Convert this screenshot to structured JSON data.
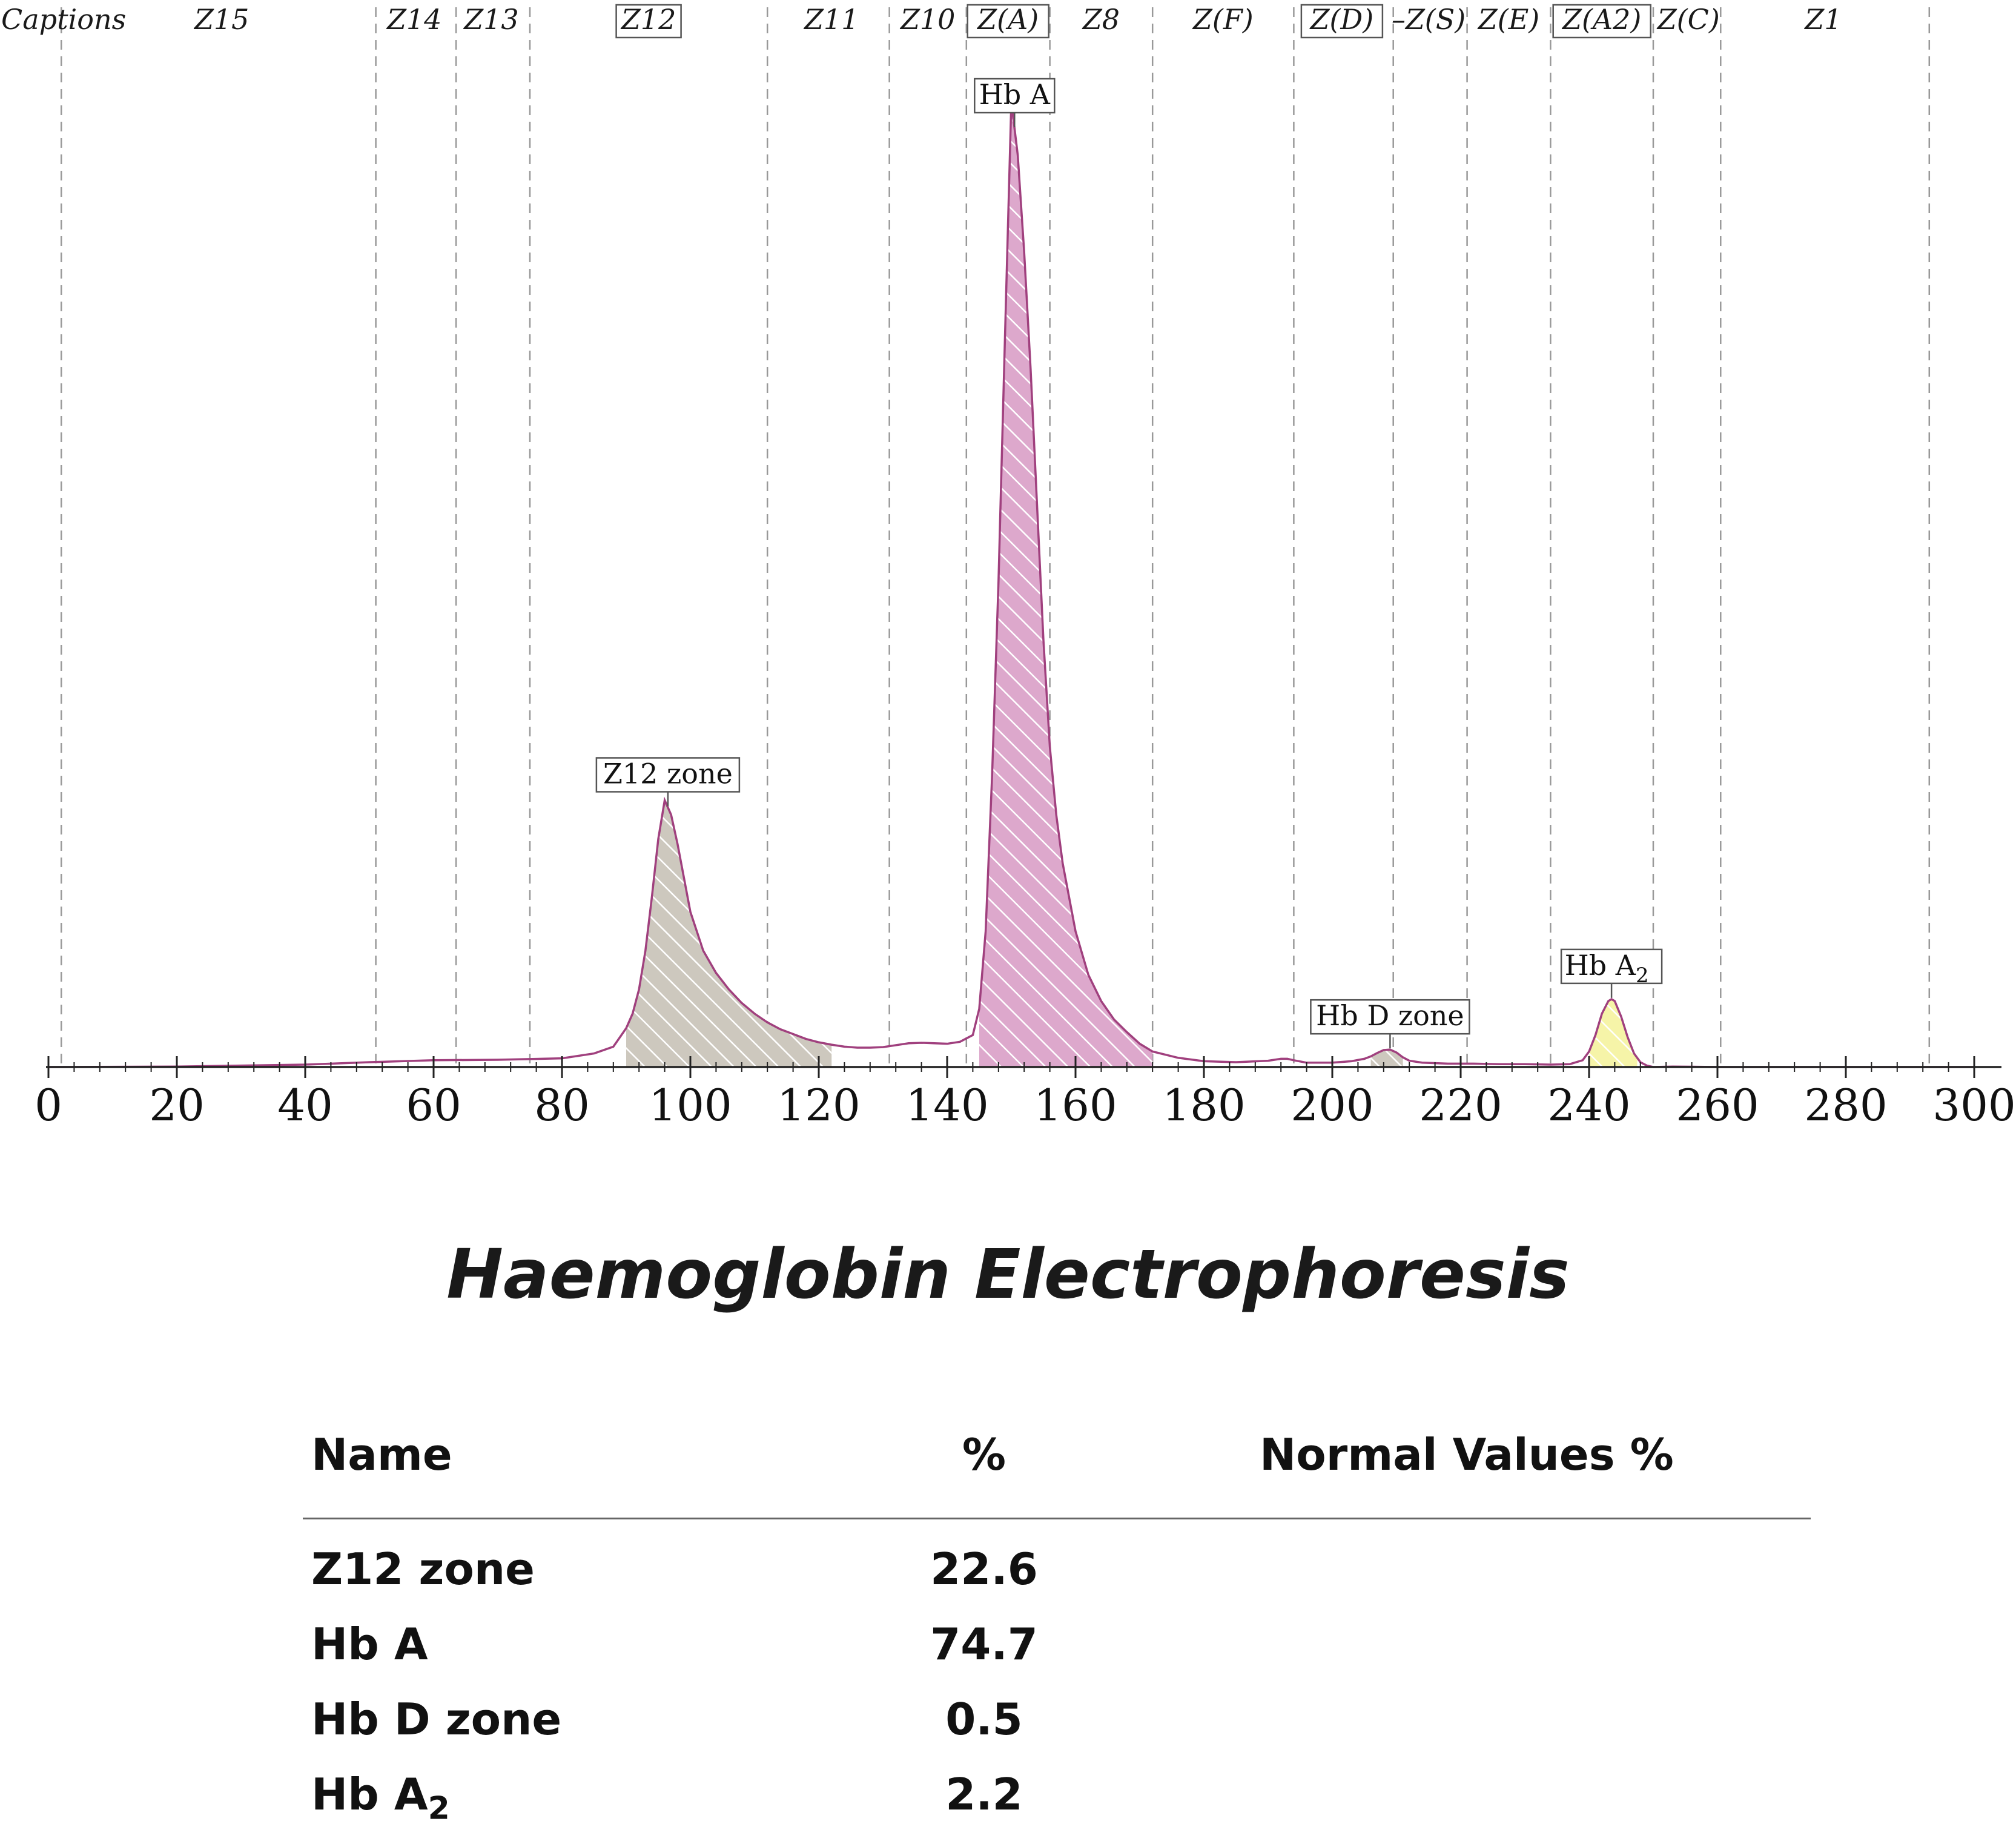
{
  "chart_data": {
    "type": "area",
    "title": "Haemoglobin Electrophoresis",
    "xlabel": "",
    "ylabel": "",
    "xlim": [
      0,
      300
    ],
    "ylim": [
      0,
      100
    ],
    "x_ticks": [
      "0",
      "20",
      "40",
      "60",
      "80",
      "100",
      "120",
      "140",
      "160",
      "180",
      "200",
      "220",
      "240",
      "260",
      "280",
      "300"
    ],
    "zone_boundaries": [
      2,
      51,
      63.5,
      75,
      112,
      131,
      143,
      156,
      172,
      194,
      209.5,
      221,
      234,
      250,
      260.5,
      293
    ],
    "zone_captions": [
      {
        "label": "Captions",
        "x": -1,
        "boxed": false
      },
      {
        "label": "Z15",
        "x": 27,
        "boxed": false
      },
      {
        "label": "Z14",
        "x": 57,
        "boxed": false
      },
      {
        "label": "Z13",
        "x": 69,
        "boxed": false
      },
      {
        "label": "Z12",
        "x": 93.5,
        "boxed": true
      },
      {
        "label": "Z11",
        "x": 122,
        "boxed": false
      },
      {
        "label": "Z10",
        "x": 137,
        "boxed": false
      },
      {
        "label": "Z(A)",
        "x": 149.5,
        "boxed": true
      },
      {
        "label": "Z8",
        "x": 164,
        "boxed": false
      },
      {
        "label": "Z(F)",
        "x": 183,
        "boxed": false
      },
      {
        "label": "Z(D)",
        "x": 201.5,
        "boxed": true
      },
      {
        "label": "–Z(S)",
        "x": 215,
        "boxed": false
      },
      {
        "label": "Z(E)",
        "x": 227.5,
        "boxed": false
      },
      {
        "label": "Z(A2)",
        "x": 242,
        "boxed": true
      },
      {
        "label": "Z(C)",
        "x": 255.5,
        "boxed": false
      },
      {
        "label": "Z1",
        "x": 276.5,
        "boxed": false
      }
    ],
    "fractions": [
      {
        "name": "Z12 zone",
        "percent": 22.6,
        "peak_x": 96.5,
        "from_x": 90,
        "to_x": 122,
        "color": "#cdc8be"
      },
      {
        "name": "Hb A",
        "percent": 74.7,
        "peak_x": 150.5,
        "from_x": 145,
        "to_x": 172,
        "color": "#dda8cc"
      },
      {
        "name": "Hb D zone",
        "percent": 0.5,
        "peak_x": 209,
        "from_x": 206,
        "to_x": 211,
        "color": "#cdc8be"
      },
      {
        "name": "Hb A2",
        "percent": 2.2,
        "peak_x": 243.5,
        "from_x": 240,
        "to_x": 247.5,
        "color": "#f6f4a8"
      }
    ],
    "trace": {
      "x": [
        0,
        20,
        40,
        50,
        60,
        70,
        80,
        85,
        88,
        90,
        91,
        92,
        93,
        94,
        95,
        96,
        97,
        98,
        99,
        100,
        102,
        104,
        106,
        108,
        110,
        112,
        114,
        116,
        118,
        120,
        122,
        124,
        126,
        128,
        130,
        132,
        134,
        136,
        138,
        140,
        142,
        144,
        145,
        146,
        147,
        148,
        149,
        150,
        151,
        152,
        153,
        154,
        155,
        156,
        157,
        158,
        160,
        162,
        164,
        166,
        168,
        170,
        172,
        176,
        180,
        185,
        190,
        192,
        193,
        194,
        196,
        200,
        203,
        205,
        206,
        207,
        208,
        209,
        210,
        211,
        212,
        214,
        218,
        222,
        226,
        230,
        234,
        237,
        239,
        240,
        241,
        242,
        243,
        243.5,
        244,
        245,
        246,
        247,
        248,
        249,
        250,
        253,
        260,
        270,
        280,
        290,
        300
      ],
      "y": [
        0,
        0.05,
        0.25,
        0.5,
        0.7,
        0.75,
        0.9,
        1.4,
        2.1,
        4,
        5.5,
        8,
        12,
        17.5,
        23.5,
        27.5,
        26,
        23,
        19.5,
        16,
        12,
        9.7,
        8,
        6.6,
        5.5,
        4.6,
        3.9,
        3.4,
        2.9,
        2.55,
        2.3,
        2.1,
        2,
        2,
        2.05,
        2.25,
        2.45,
        2.5,
        2.45,
        2.4,
        2.6,
        3.3,
        6,
        14,
        30,
        50,
        75,
        99.5,
        94,
        84,
        72,
        58,
        44,
        33,
        26,
        21,
        14,
        9.5,
        6.8,
        4.9,
        3.6,
        2.4,
        1.6,
        0.95,
        0.6,
        0.5,
        0.65,
        0.85,
        0.85,
        0.7,
        0.45,
        0.45,
        0.6,
        0.85,
        1.1,
        1.45,
        1.75,
        1.8,
        1.5,
        1,
        0.65,
        0.45,
        0.35,
        0.35,
        0.3,
        0.3,
        0.25,
        0.3,
        0.7,
        1.6,
        3.3,
        5.5,
        6.8,
        7,
        6.8,
        5.2,
        3.1,
        1.4,
        0.5,
        0.15,
        0,
        0.05,
        0,
        0,
        0,
        0,
        0
      ]
    }
  },
  "results": {
    "headers": {
      "name": "Name",
      "percent": "%",
      "normal": "Normal Values %"
    },
    "rows": [
      {
        "name": "Z12 zone",
        "percent": "22.6",
        "normal": ""
      },
      {
        "name": "Hb A",
        "percent": "74.7",
        "normal": ""
      },
      {
        "name": "Hb D zone",
        "percent": "0.5",
        "normal": ""
      },
      {
        "name": "Hb A",
        "name_sub": "2",
        "percent": "2.2",
        "normal": ""
      }
    ]
  },
  "colors": {
    "trace": "#a0407e",
    "zone_line": "#999999",
    "axis": "#222222"
  }
}
